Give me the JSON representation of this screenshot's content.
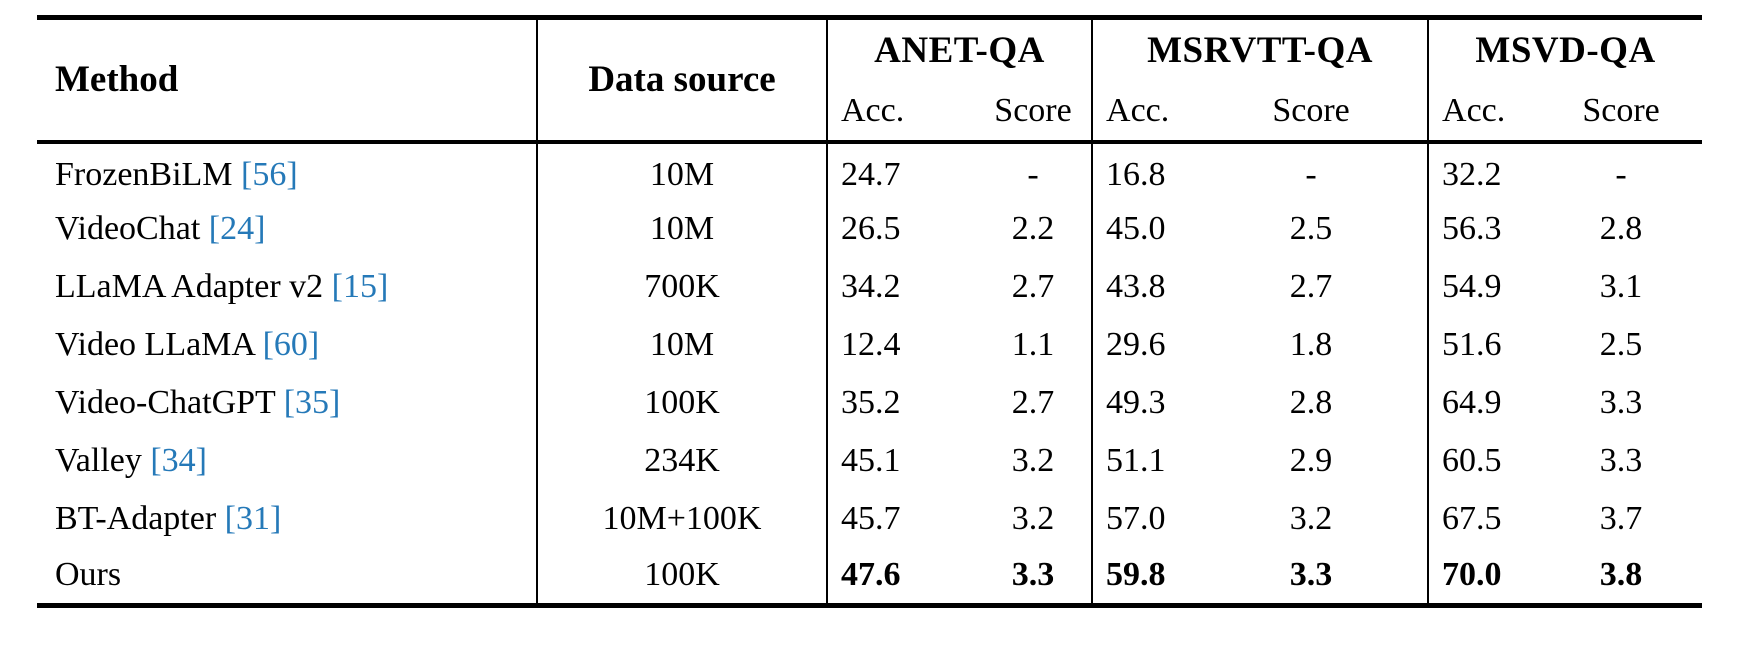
{
  "page": {
    "background": "#ffffff",
    "text_color": "#000000",
    "citation_color": "#2579b8"
  },
  "table": {
    "header": {
      "method": "Method",
      "data_source": "Data source",
      "groups": [
        {
          "name": "ANET-QA"
        },
        {
          "name": "MSRVTT-QA"
        },
        {
          "name": "MSVD-QA"
        }
      ],
      "acc": "Acc.",
      "score": "Score"
    },
    "citation_brackets": [
      "[",
      "]"
    ],
    "rows": [
      {
        "method": "FrozenBiLM",
        "cite": "56",
        "data_source": "10M",
        "anet_acc": "24.7",
        "anet_score": "-",
        "msrvtt_acc": "16.8",
        "msrvtt_score": "-",
        "msvd_acc": "32.2",
        "msvd_score": "-",
        "bold": false
      },
      {
        "method": "VideoChat",
        "cite": "24",
        "data_source": "10M",
        "anet_acc": "26.5",
        "anet_score": "2.2",
        "msrvtt_acc": "45.0",
        "msrvtt_score": "2.5",
        "msvd_acc": "56.3",
        "msvd_score": "2.8",
        "bold": false
      },
      {
        "method": "LLaMA Adapter v2",
        "cite": "15",
        "data_source": "700K",
        "anet_acc": "34.2",
        "anet_score": "2.7",
        "msrvtt_acc": "43.8",
        "msrvtt_score": "2.7",
        "msvd_acc": "54.9",
        "msvd_score": "3.1",
        "bold": false
      },
      {
        "method": "Video LLaMA",
        "cite": "60",
        "data_source": "10M",
        "anet_acc": "12.4",
        "anet_score": "1.1",
        "msrvtt_acc": "29.6",
        "msrvtt_score": "1.8",
        "msvd_acc": "51.6",
        "msvd_score": "2.5",
        "bold": false
      },
      {
        "method": "Video-ChatGPT",
        "cite": "35",
        "data_source": "100K",
        "anet_acc": "35.2",
        "anet_score": "2.7",
        "msrvtt_acc": "49.3",
        "msrvtt_score": "2.8",
        "msvd_acc": "64.9",
        "msvd_score": "3.3",
        "bold": false
      },
      {
        "method": "Valley",
        "cite": "34",
        "data_source": "234K",
        "anet_acc": "45.1",
        "anet_score": "3.2",
        "msrvtt_acc": "51.1",
        "msrvtt_score": "2.9",
        "msvd_acc": "60.5",
        "msvd_score": "3.3",
        "bold": false
      },
      {
        "method": "BT-Adapter",
        "cite": "31",
        "data_source": "10M+100K",
        "anet_acc": "45.7",
        "anet_score": "3.2",
        "msrvtt_acc": "57.0",
        "msrvtt_score": "3.2",
        "msvd_acc": "67.5",
        "msvd_score": "3.7",
        "bold": false
      },
      {
        "method": "Ours",
        "cite": "",
        "data_source": "100K",
        "anet_acc": "47.6",
        "anet_score": "3.3",
        "msrvtt_acc": "59.8",
        "msrvtt_score": "3.3",
        "msvd_acc": "70.0",
        "msvd_score": "3.8",
        "bold": true
      }
    ]
  }
}
